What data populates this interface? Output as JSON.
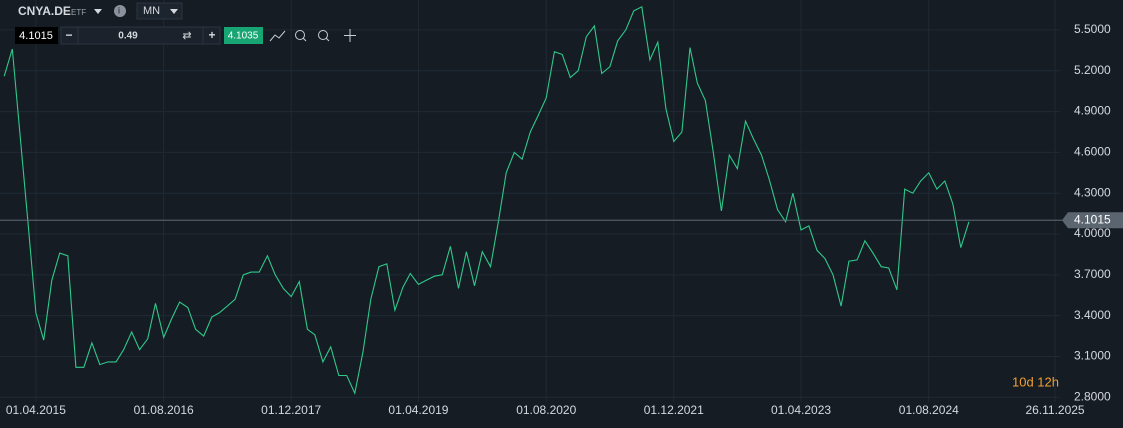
{
  "ui": {
    "symbol": "CNYA.DE",
    "symbol_type": "ETF",
    "timeframe": "MN",
    "bid": "4.1015",
    "step": "0.49",
    "ask": "4.1035",
    "countdown": "10d 12h"
  },
  "chart_data": {
    "type": "line",
    "color": "#2fc98a",
    "grid": true,
    "xlim": [
      "15.11.2014",
      "15.12.2025"
    ],
    "xticks": [
      "01.04.2015",
      "01.08.2016",
      "01.12.2017",
      "01.04.2019",
      "01.08.2020",
      "01.12.2021",
      "01.04.2023",
      "01.08.2024",
      "26.11.2025"
    ],
    "ylim": [
      2.78,
      5.72
    ],
    "yticks": [
      {
        "value": 2.8,
        "label": "2.8000"
      },
      {
        "value": 3.1,
        "label": "3.1000"
      },
      {
        "value": 3.4,
        "label": "3.4000"
      },
      {
        "value": 3.7,
        "label": "3.7000"
      },
      {
        "value": 4.0,
        "label": "4.0000"
      },
      {
        "value": 4.3,
        "label": "4.3000"
      },
      {
        "value": 4.6,
        "label": "4.6000"
      },
      {
        "value": 4.9,
        "label": "4.9000"
      },
      {
        "value": 5.2,
        "label": "5.2000"
      },
      {
        "value": 5.5,
        "label": "5.5000"
      }
    ],
    "last_price": 4.1015,
    "x": [
      "01.12.2014",
      "01.01.2015",
      "01.02.2015",
      "01.03.2015",
      "01.04.2015",
      "01.05.2015",
      "01.06.2015",
      "01.07.2015",
      "01.08.2015",
      "01.09.2015",
      "01.10.2015",
      "01.11.2015",
      "01.12.2015",
      "01.01.2016",
      "01.02.2016",
      "01.03.2016",
      "01.04.2016",
      "01.05.2016",
      "01.06.2016",
      "01.07.2016",
      "01.08.2016",
      "01.09.2016",
      "01.10.2016",
      "01.11.2016",
      "01.12.2016",
      "01.01.2017",
      "01.02.2017",
      "01.03.2017",
      "01.04.2017",
      "01.05.2017",
      "01.06.2017",
      "01.07.2017",
      "01.08.2017",
      "01.09.2017",
      "01.10.2017",
      "01.11.2017",
      "01.12.2017",
      "01.01.2018",
      "01.02.2018",
      "01.03.2018",
      "01.04.2018",
      "01.05.2018",
      "01.06.2018",
      "01.07.2018",
      "01.08.2018",
      "01.09.2018",
      "01.10.2018",
      "01.11.2018",
      "01.12.2018",
      "01.01.2019",
      "01.02.2019",
      "01.03.2019",
      "01.04.2019",
      "01.05.2019",
      "01.06.2019",
      "01.07.2019",
      "01.08.2019",
      "01.09.2019",
      "01.10.2019",
      "01.11.2019",
      "01.12.2019",
      "01.01.2020",
      "01.02.2020",
      "01.03.2020",
      "01.04.2020",
      "01.05.2020",
      "01.06.2020",
      "01.07.2020",
      "01.08.2020",
      "01.09.2020",
      "01.10.2020",
      "01.11.2020",
      "01.12.2020",
      "01.01.2021",
      "01.02.2021",
      "01.03.2021",
      "01.04.2021",
      "01.05.2021",
      "01.06.2021",
      "01.07.2021",
      "01.08.2021",
      "01.09.2021",
      "01.10.2021",
      "01.11.2021",
      "01.12.2021",
      "01.01.2022",
      "01.02.2022",
      "01.03.2022",
      "01.04.2022",
      "01.05.2022",
      "01.06.2022",
      "01.07.2022",
      "01.08.2022",
      "01.09.2022",
      "01.10.2022",
      "01.11.2022",
      "01.12.2022",
      "01.01.2023",
      "01.02.2023",
      "01.03.2023",
      "01.04.2023",
      "01.05.2023",
      "01.06.2023",
      "01.07.2023",
      "01.08.2023",
      "01.09.2023",
      "01.10.2023",
      "01.11.2023",
      "01.12.2023",
      "01.01.2024",
      "01.02.2024",
      "01.03.2024",
      "01.04.2024",
      "01.05.2024",
      "01.06.2024",
      "01.07.2024",
      "01.08.2024",
      "01.09.2024",
      "01.10.2024",
      "01.11.2024",
      "01.12.2024",
      "01.01.2025"
    ],
    "values": [
      5.16,
      5.36,
      4.7,
      4.1,
      3.42,
      3.22,
      3.66,
      3.86,
      3.84,
      3.02,
      3.02,
      3.2,
      3.04,
      3.06,
      3.06,
      3.15,
      3.28,
      3.15,
      3.23,
      3.49,
      3.24,
      3.38,
      3.5,
      3.46,
      3.3,
      3.25,
      3.39,
      3.42,
      3.47,
      3.52,
      3.7,
      3.72,
      3.72,
      3.84,
      3.7,
      3.6,
      3.54,
      3.65,
      3.3,
      3.26,
      3.06,
      3.17,
      2.96,
      2.96,
      2.83,
      3.13,
      3.52,
      3.76,
      3.78,
      3.44,
      3.61,
      3.71,
      3.63,
      3.66,
      3.69,
      3.7,
      3.91,
      3.6,
      3.87,
      3.62,
      3.87,
      3.76,
      4.1,
      4.45,
      4.6,
      4.55,
      4.75,
      4.87,
      5.0,
      5.34,
      5.32,
      5.15,
      5.2,
      5.45,
      5.53,
      5.18,
      5.23,
      5.42,
      5.5,
      5.64,
      5.67,
      5.28,
      5.41,
      4.92,
      4.68,
      4.75,
      5.37,
      5.11,
      4.98,
      4.6,
      4.17,
      4.58,
      4.48,
      4.83,
      4.7,
      4.58,
      4.4,
      4.18,
      4.09,
      4.3,
      4.03,
      4.06,
      3.88,
      3.82,
      3.7,
      3.47,
      3.8,
      3.81,
      3.95,
      3.86,
      3.76,
      3.75,
      3.59,
      4.33,
      4.3,
      4.39,
      4.45,
      4.33,
      4.39,
      4.22,
      3.9,
      4.09
    ]
  }
}
